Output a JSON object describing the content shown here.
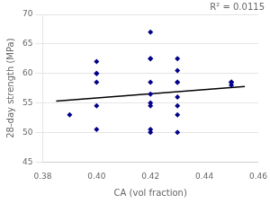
{
  "chart_data": {
    "type": "scatter",
    "xlabel": "CA (vol fraction)",
    "ylabel": "28-day strength (MPa)",
    "annotation": "R² = 0.0115",
    "series": [
      {
        "type": "scatter",
        "color": "#00008B",
        "marker": "diamond",
        "x": [
          0.39,
          0.4,
          0.4,
          0.4,
          0.4,
          0.4,
          0.4,
          0.42,
          0.42,
          0.42,
          0.42,
          0.42,
          0.42,
          0.42,
          0.42,
          0.42,
          0.43,
          0.43,
          0.43,
          0.43,
          0.43,
          0.43,
          0.43,
          0.43,
          0.45,
          0.45,
          0.45,
          0.45
        ],
        "values": [
          53.0,
          62.0,
          60.0,
          60.0,
          58.5,
          54.5,
          50.5,
          67.0,
          62.5,
          62.5,
          58.5,
          56.5,
          55.0,
          54.5,
          50.5,
          50.0,
          62.5,
          60.5,
          58.5,
          58.5,
          56.0,
          54.5,
          53.0,
          50.0,
          58.5,
          58.5,
          58.5,
          58.0
        ]
      },
      {
        "type": "line",
        "color": "black",
        "x": [
          0.385,
          0.455
        ],
        "values": [
          55.3,
          57.8
        ]
      }
    ],
    "xlim": [
      0.38,
      0.46
    ],
    "ylim": [
      45,
      70
    ],
    "xticks": [
      0.38,
      {
        "value": 0.4,
        "label": "0.40"
      },
      0.42,
      0.44,
      0.46
    ],
    "yticks": [
      45,
      50,
      55,
      60,
      65,
      70
    ],
    "grid": "y"
  }
}
